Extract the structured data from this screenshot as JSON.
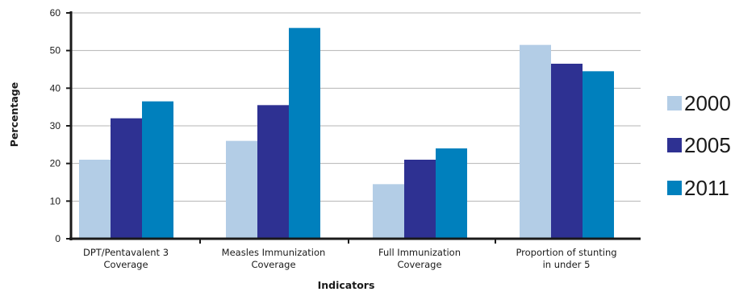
{
  "chart_data": {
    "type": "bar",
    "xlabel": "Indicators",
    "ylabel": "Percentage",
    "ylim": [
      0,
      60
    ],
    "yticks": [
      0,
      10,
      20,
      30,
      40,
      50,
      60
    ],
    "grid": true,
    "legend_position": "right",
    "categories": [
      [
        "DPT/Pentavalent 3",
        "Coverage"
      ],
      [
        "Measles Immunization",
        "Coverage"
      ],
      [
        "Full Immunization",
        "Coverage"
      ],
      [
        "Proportion of stunting",
        "in under 5"
      ]
    ],
    "series": [
      {
        "name": "2000",
        "color": "#b3cde6",
        "values": [
          21,
          26,
          14.5,
          51.5
        ]
      },
      {
        "name": "2005",
        "color": "#2e3192",
        "values": [
          32,
          35.5,
          21,
          46.5
        ]
      },
      {
        "name": "2011",
        "color": "#0080bd",
        "values": [
          36.5,
          56,
          24,
          44.5
        ]
      }
    ]
  }
}
